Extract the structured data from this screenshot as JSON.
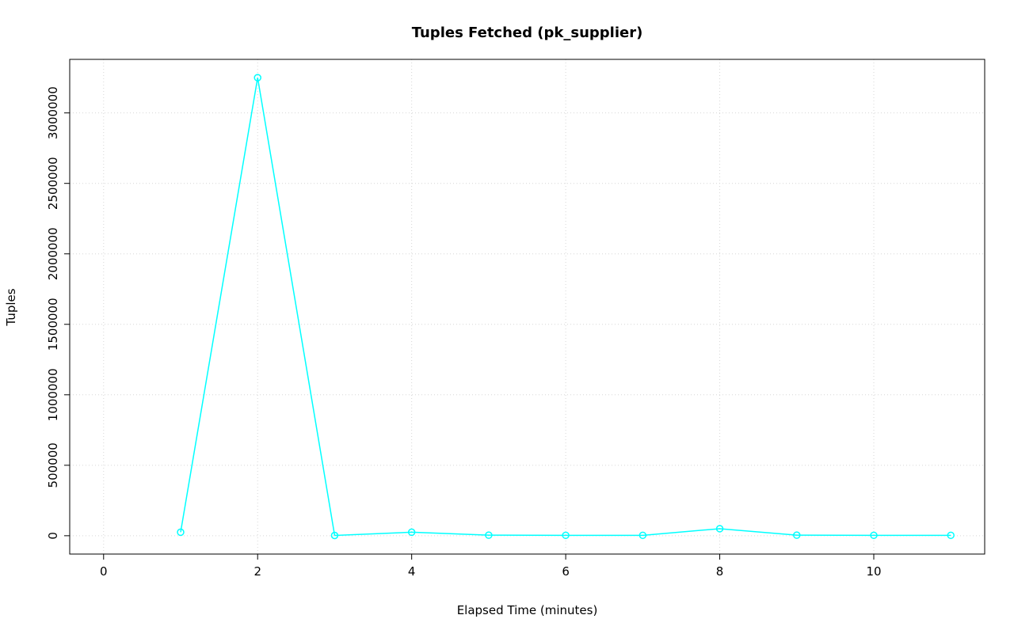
{
  "chart_data": {
    "type": "line",
    "title": "Tuples Fetched (pk_supplier)",
    "xlabel": "Elapsed Time (minutes)",
    "ylabel": "Tuples",
    "x": [
      1,
      2,
      3,
      4,
      5,
      6,
      7,
      8,
      9,
      10,
      11
    ],
    "series": [
      {
        "name": "pk_supplier",
        "color": "#00ffff",
        "values": [
          25000,
          3250000,
          2000,
          25000,
          4000,
          3000,
          3000,
          50000,
          4000,
          3000,
          3000
        ]
      }
    ],
    "xticks": [
      0,
      2,
      4,
      6,
      8,
      10
    ],
    "yticks": [
      0,
      500000,
      1000000,
      1500000,
      2000000,
      2500000,
      3000000
    ],
    "xlim": [
      -0.44,
      11.44
    ],
    "ylim": [
      -130000,
      3380000
    ],
    "grid": true,
    "marker": "open-circle",
    "legend": "none"
  }
}
